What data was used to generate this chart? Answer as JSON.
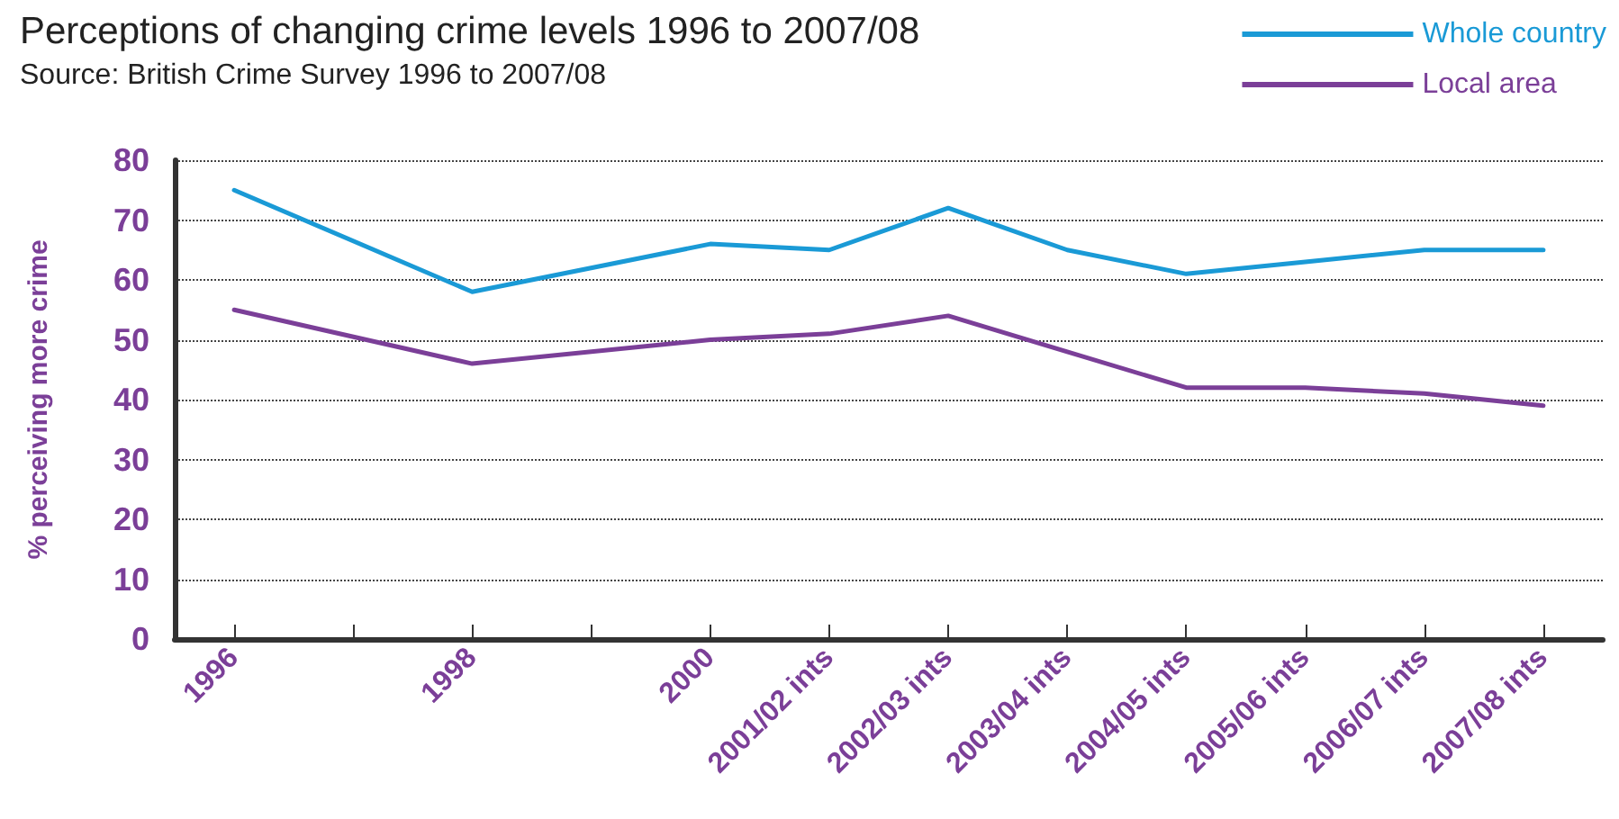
{
  "chart_data": {
    "type": "line",
    "title": "Perceptions of changing crime levels 1996 to 2007/08",
    "subtitle": "Source: British Crime Survey 1996 to 2007/08",
    "ylabel": "% perceiving more crime",
    "x": [
      1996,
      1998,
      2000,
      2001,
      2002,
      2003,
      2004,
      2005,
      2006,
      2007
    ],
    "xlim": [
      1995.5,
      2007.5
    ],
    "xticks": [
      1996,
      {
        "value": 1997,
        "label": null
      },
      1998,
      {
        "value": 1999,
        "label": null
      },
      2000,
      {
        "value": 2001,
        "label": "2001/02 ints"
      },
      {
        "value": 2002,
        "label": "2002/03 ints"
      },
      {
        "value": 2003,
        "label": "2003/04 ints"
      },
      {
        "value": 2004,
        "label": "2004/05 ints"
      },
      {
        "value": 2005,
        "label": "2005/06 ints"
      },
      {
        "value": 2006,
        "label": "2006/07 ints"
      },
      {
        "value": 2007,
        "label": "2007/08 ints"
      }
    ],
    "ylim": [
      0,
      80
    ],
    "yticks": [
      0,
      10,
      20,
      30,
      40,
      50,
      60,
      70,
      80
    ],
    "series": [
      {
        "name": "Whole country",
        "color": "#1a9ad6",
        "values": [
          75,
          58,
          66,
          65,
          72,
          65,
          61,
          63,
          65,
          65
        ]
      },
      {
        "name": "Local area",
        "color": "#7b3f98",
        "values": [
          55,
          46,
          50,
          51,
          54,
          48,
          42,
          42,
          41,
          39
        ]
      }
    ],
    "grid": "y",
    "legend": "top right",
    "marker": "none",
    "line_style": "solid"
  }
}
